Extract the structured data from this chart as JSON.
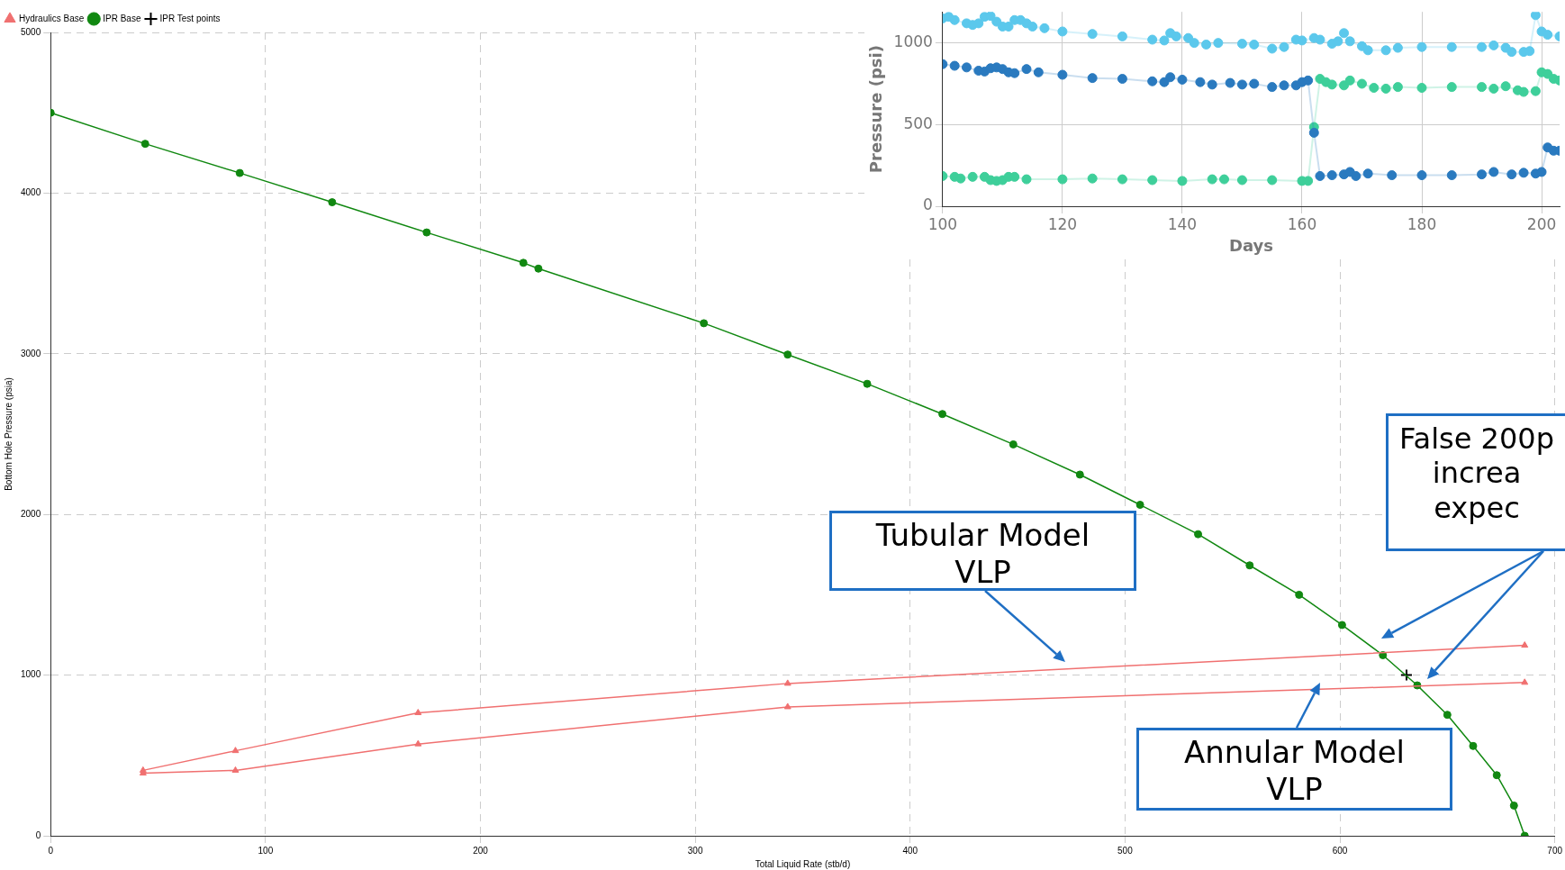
{
  "chart_data": [
    {
      "type": "line",
      "xlabel": "Total Liquid Rate (stb/d)",
      "ylabel": "Bottom Hole Pressure (psia)",
      "xlim": [
        0,
        700
      ],
      "ylim": [
        0,
        5000
      ],
      "xticks": [
        0,
        100,
        200,
        300,
        400,
        500,
        600,
        700
      ],
      "yticks": [
        0,
        1000,
        2000,
        3000,
        4000,
        5000
      ],
      "grid": true,
      "legend": "top left",
      "series": [
        {
          "name": "Hydraulics Base",
          "type": "line",
          "color": "#f07070",
          "marker": "triangle",
          "x": [
            686,
            343,
            171,
            86,
            43,
            43,
            86,
            171,
            343,
            686
          ],
          "values": [
            1185,
            948,
            765,
            529,
            407,
            389,
            407,
            571,
            802,
            954
          ]
        },
        {
          "name": "IPR Base",
          "type": "line",
          "color": "#118811",
          "marker": "circle",
          "x": [
            0,
            44,
            88,
            131,
            175,
            220,
            227,
            304,
            343,
            380,
            415,
            448,
            479,
            507,
            534,
            558,
            581,
            601,
            620,
            636,
            650,
            662,
            673,
            681,
            686
          ],
          "values": [
            4500,
            4307,
            4125,
            3943,
            3755,
            3566,
            3530,
            3190,
            2995,
            2813,
            2625,
            2436,
            2248,
            2060,
            1877,
            1683,
            1500,
            1312,
            1124,
            936,
            753,
            559,
            377,
            188,
            0
          ]
        },
        {
          "name": "IPR Test points",
          "type": "scatter",
          "color": "#000000",
          "marker": "cross",
          "x": [
            631
          ],
          "values": [
            1000
          ]
        }
      ],
      "annotations": [
        "Tubular Model\nVLP",
        "Annular Model\nVLP",
        "False 200p\nincrea\nexpec"
      ]
    },
    {
      "type": "line",
      "xlabel": "Days",
      "ylabel": "Pressure (psi)",
      "xlim": [
        100,
        203
      ],
      "ylim": [
        0,
        1190
      ],
      "xticks": [
        100,
        120,
        140,
        160,
        180,
        200
      ],
      "yticks": [
        0,
        500,
        1000
      ],
      "grid": true,
      "marker": "circle",
      "series": [
        {
          "color": "#5bc8ec",
          "x": [
            100,
            101,
            102,
            104,
            105,
            106,
            107,
            108,
            109,
            110,
            111,
            112,
            113,
            114,
            115,
            117,
            120,
            125,
            130,
            135,
            137,
            138,
            139,
            141,
            142,
            144,
            146,
            150,
            152,
            155,
            157,
            159,
            160,
            162,
            163,
            165,
            166,
            167,
            168,
            170,
            171,
            174,
            176,
            180,
            185,
            190,
            192,
            194,
            195,
            197,
            198,
            199,
            200,
            201,
            203
          ],
          "values": [
            1150,
            1160,
            1140,
            1120,
            1110,
            1120,
            1160,
            1165,
            1130,
            1100,
            1100,
            1140,
            1140,
            1120,
            1100,
            1090,
            1070,
            1055,
            1040,
            1020,
            1015,
            1060,
            1040,
            1030,
            1000,
            990,
            1000,
            995,
            990,
            965,
            975,
            1020,
            1015,
            1030,
            1020,
            995,
            1010,
            1060,
            1010,
            980,
            955,
            955,
            970,
            975,
            975,
            975,
            985,
            970,
            945,
            945,
            950,
            1170,
            1070,
            1050,
            1040
          ]
        },
        {
          "color": "#2a7abf",
          "x": [
            100,
            102,
            104,
            106,
            107,
            108,
            109,
            110,
            111,
            112,
            114,
            116,
            120,
            125,
            130,
            135,
            137,
            138,
            140,
            143,
            145,
            148,
            150,
            152,
            155,
            157,
            159,
            160,
            161,
            162,
            163,
            165,
            167,
            168,
            169,
            171,
            175,
            180,
            185,
            190,
            192,
            195,
            197,
            199,
            200,
            201,
            202,
            203
          ],
          "values": [
            870,
            860,
            850,
            830,
            825,
            845,
            850,
            840,
            820,
            815,
            840,
            820,
            805,
            785,
            780,
            765,
            760,
            790,
            775,
            760,
            745,
            755,
            745,
            750,
            730,
            740,
            740,
            760,
            770,
            450,
            185,
            190,
            195,
            210,
            185,
            200,
            190,
            190,
            190,
            195,
            210,
            195,
            205,
            200,
            210,
            360,
            340,
            340
          ]
        },
        {
          "color": "#3ecf9a",
          "x": [
            100,
            102,
            103,
            105,
            107,
            108,
            109,
            110,
            111,
            112,
            114,
            120,
            125,
            130,
            135,
            140,
            145,
            147,
            150,
            155,
            160,
            161,
            162,
            163,
            164,
            165,
            167,
            168,
            170,
            172,
            174,
            176,
            180,
            185,
            190,
            192,
            194,
            196,
            197,
            199,
            200,
            201,
            202,
            203
          ],
          "values": [
            185,
            180,
            170,
            180,
            180,
            160,
            155,
            160,
            180,
            180,
            165,
            165,
            170,
            165,
            160,
            155,
            165,
            165,
            160,
            160,
            155,
            155,
            485,
            780,
            760,
            745,
            740,
            770,
            750,
            725,
            720,
            730,
            725,
            730,
            730,
            720,
            735,
            710,
            700,
            705,
            820,
            810,
            780,
            770
          ]
        }
      ]
    }
  ]
}
